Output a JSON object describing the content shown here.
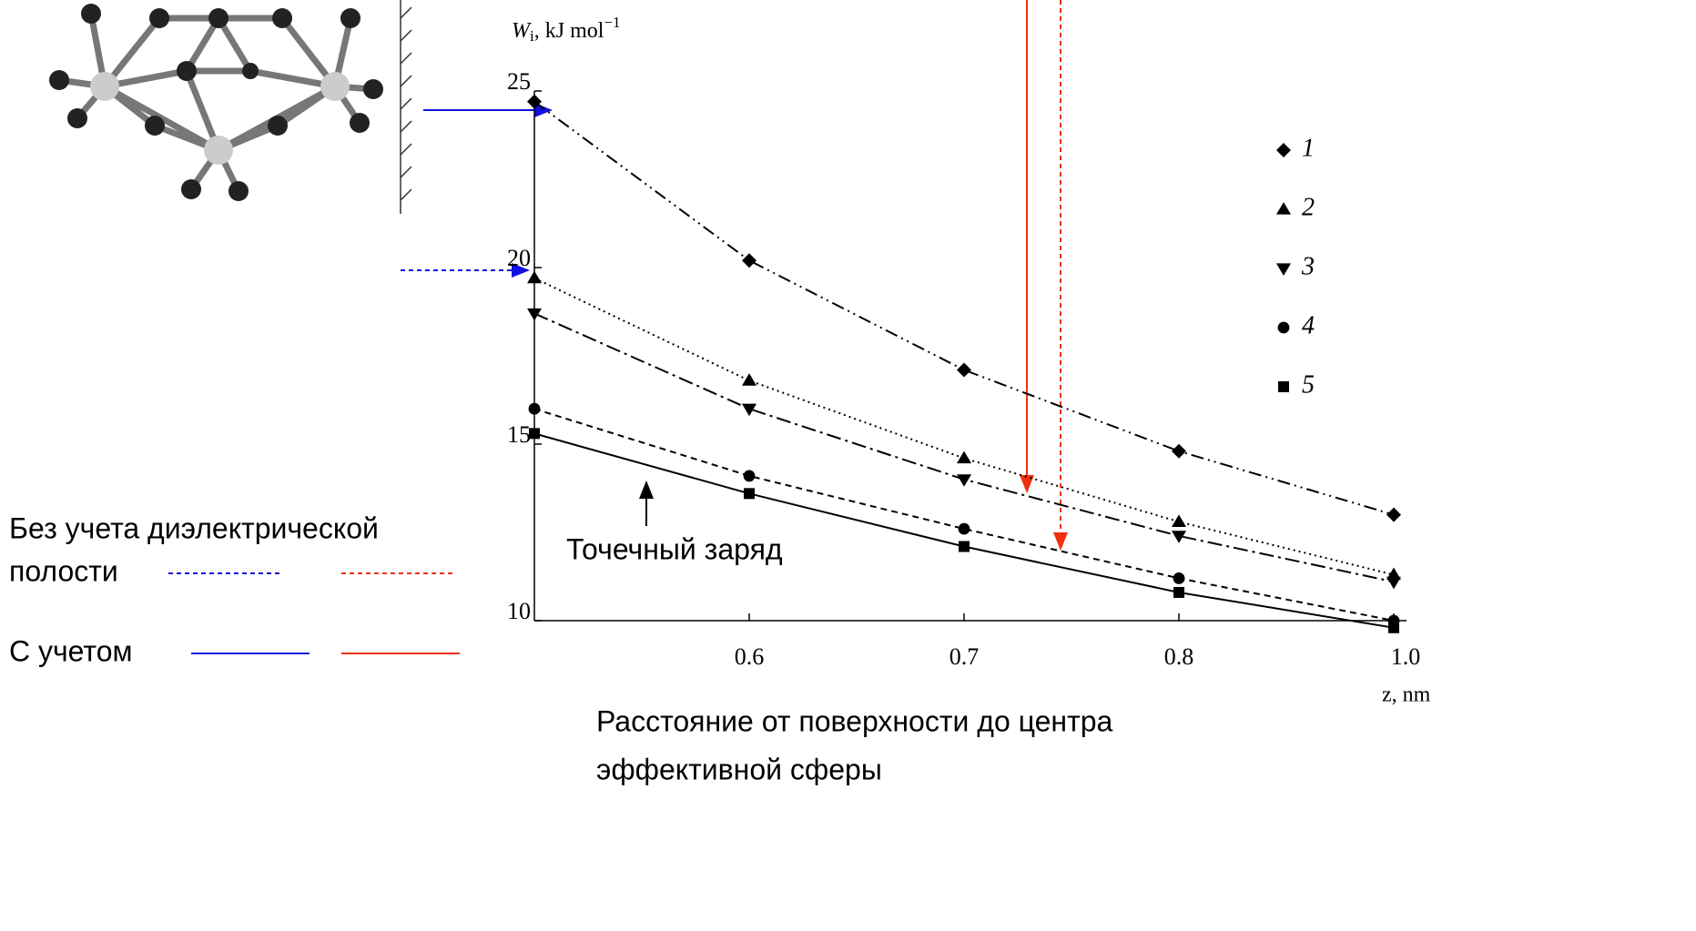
{
  "chart_data": {
    "type": "line",
    "y_label": {
      "symbol": "W",
      "sub": "i",
      "unit": ", kJ mol",
      "sup": "−1"
    },
    "x_label": "z, nm",
    "categories": [
      null,
      "0.6",
      "0.7",
      "0.8",
      "1.0"
    ],
    "ylim": [
      10,
      25
    ],
    "yticks": [
      10,
      15,
      20,
      25
    ],
    "series": [
      {
        "name": "1",
        "color": "#000000",
        "marker": "diamond",
        "dash": "14 5 2 5 2 5",
        "values": [
          24.7,
          20.2,
          17.1,
          14.8,
          13.0
        ]
      },
      {
        "name": "2",
        "color": "#000000",
        "marker": "triangle-up",
        "dash": "2 4",
        "values": [
          19.7,
          16.8,
          14.6,
          12.8,
          11.3
        ]
      },
      {
        "name": "3",
        "color": "#000000",
        "marker": "triangle-down",
        "dash": "16 5 3 5",
        "values": [
          18.7,
          16.0,
          14.0,
          12.4,
          11.1
        ]
      },
      {
        "name": "4",
        "color": "#000000",
        "marker": "circle",
        "dash": "7 5",
        "values": [
          16.0,
          14.1,
          12.6,
          11.2,
          10.0
        ]
      },
      {
        "name": "5",
        "color": "#000000",
        "marker": "square",
        "dash": "",
        "values": [
          15.3,
          13.6,
          12.1,
          10.8,
          9.8
        ]
      }
    ],
    "annotations": {
      "point_charge": "Точечный заряд",
      "x_caption": [
        "Расстояние от поверхности до центра",
        "эффективной сферы"
      ],
      "without_cavity": [
        "Без учета диэлектрической",
        "полости"
      ],
      "with_cavity": "С учетом"
    }
  }
}
